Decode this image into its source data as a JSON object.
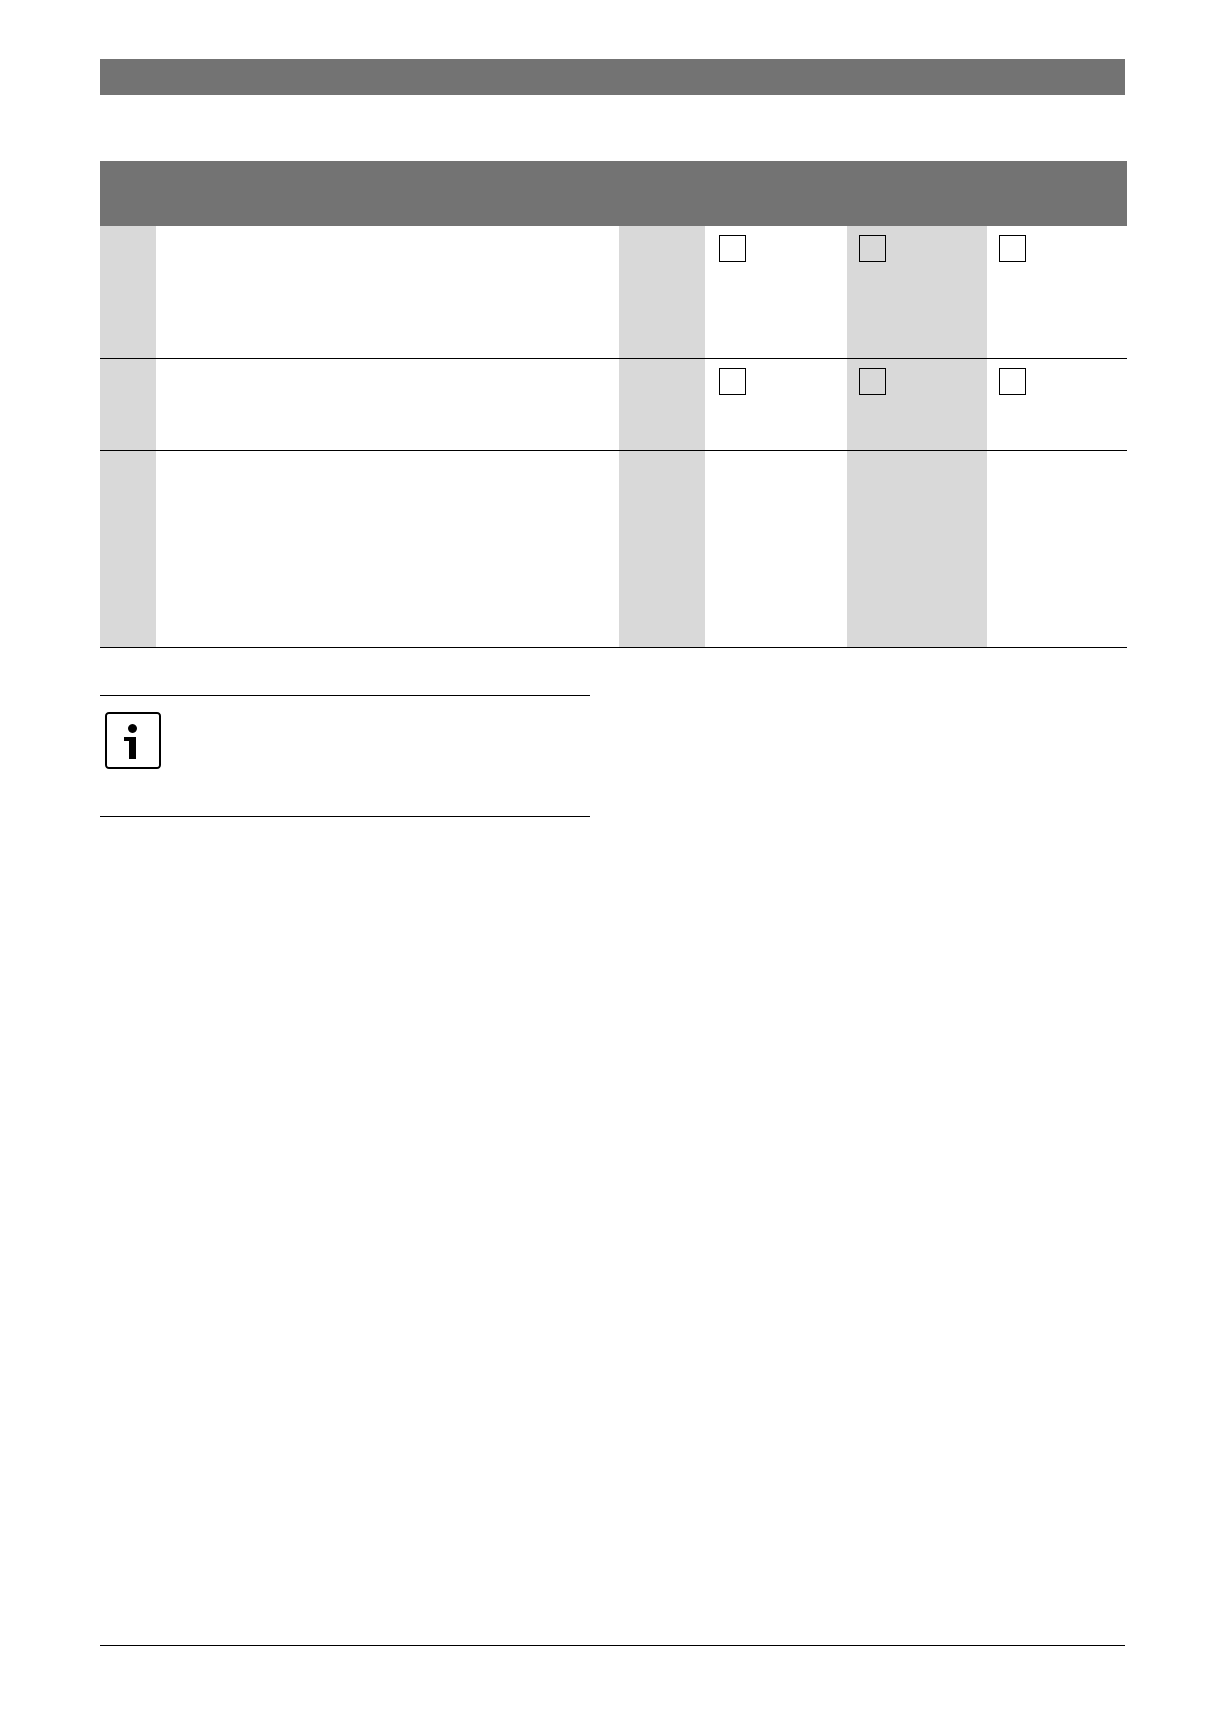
{
  "colors": {
    "header": "#737373",
    "shaded": "#d9d9d9",
    "rule": "#000000"
  },
  "table": {
    "rows": [
      {
        "checkboxes": 3
      },
      {
        "checkboxes": 3
      },
      {
        "checkboxes": 0
      }
    ]
  },
  "note": {
    "icon": "info-icon"
  }
}
